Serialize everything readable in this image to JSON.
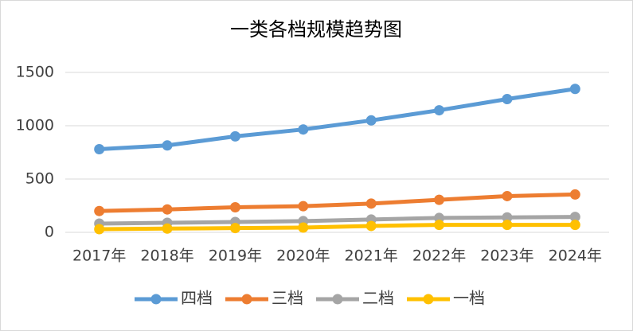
{
  "chart_data": {
    "type": "line",
    "title": "一类各档规模趋势图",
    "categories": [
      "2017年",
      "2018年",
      "2019年",
      "2020年",
      "2021年",
      "2022年",
      "2023年",
      "2024年"
    ],
    "series": [
      {
        "name": "四档",
        "color": "#5b9bd5",
        "values": [
          780,
          815,
          900,
          965,
          1050,
          1145,
          1250,
          1345
        ]
      },
      {
        "name": "三档",
        "color": "#ed7d31",
        "values": [
          200,
          215,
          235,
          245,
          270,
          305,
          340,
          355
        ]
      },
      {
        "name": "二档",
        "color": "#a5a5a5",
        "values": [
          82,
          90,
          97,
          105,
          120,
          135,
          140,
          145
        ]
      },
      {
        "name": "一档",
        "color": "#ffc000",
        "values": [
          30,
          35,
          40,
          45,
          60,
          70,
          70,
          70
        ]
      }
    ],
    "ylim": [
      0,
      1500
    ],
    "yticks": [
      0,
      500,
      1000,
      1500
    ],
    "grid": true,
    "legend": "bottom"
  }
}
